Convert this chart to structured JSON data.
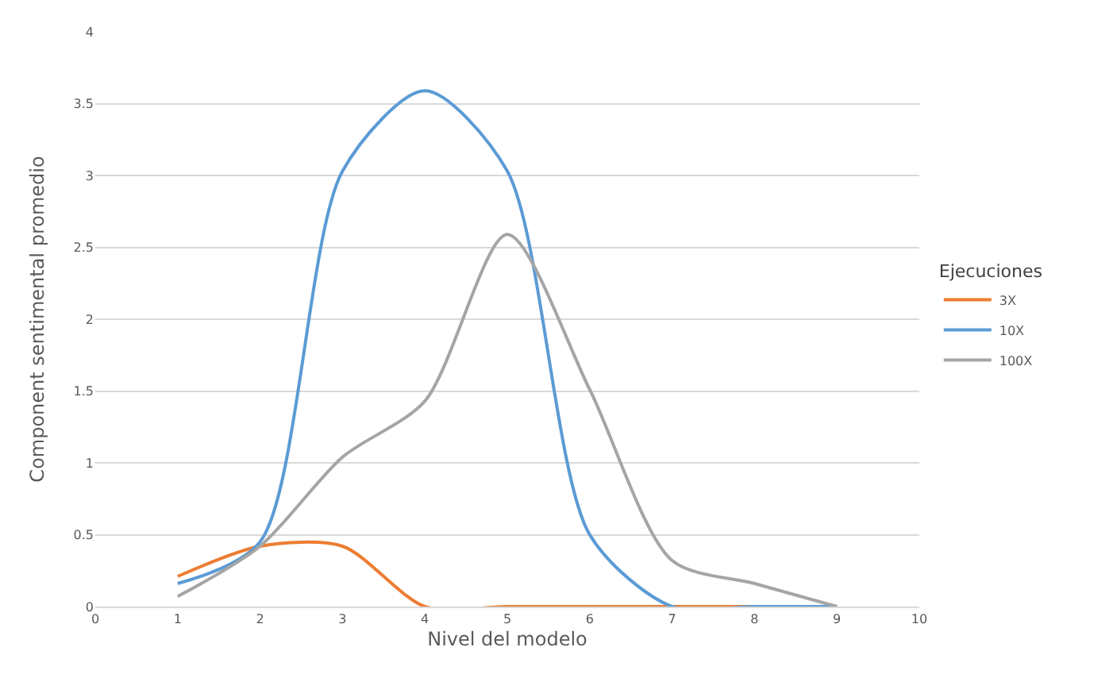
{
  "chart_data": {
    "type": "line",
    "xlabel": "Nivel del modelo",
    "ylabel": "Component sentimental promedio",
    "legend_title": "Ejecuciones",
    "x": [
      1,
      2,
      3,
      4,
      5,
      6,
      7,
      8,
      9
    ],
    "series": [
      {
        "name": "3X",
        "color": "#ed7d31",
        "values": [
          0.21,
          0.42,
          0.42,
          0,
          0,
          0,
          0,
          0,
          0
        ]
      },
      {
        "name": "10X",
        "color": "#5b9bd5",
        "values": [
          0.16,
          0.45,
          3.03,
          3.59,
          3.03,
          0.5,
          0,
          0,
          0
        ]
      },
      {
        "name": "100X",
        "color": "#a5a5a5",
        "values": [
          0.07,
          0.42,
          1.04,
          1.43,
          2.59,
          1.51,
          0.32,
          0.16,
          0
        ]
      }
    ],
    "xlim": [
      0,
      10
    ],
    "xticks": [
      0,
      1,
      2,
      3,
      4,
      5,
      6,
      7,
      8,
      9,
      10
    ],
    "ylim": [
      0,
      4
    ],
    "yticks": [
      0,
      0.5,
      1,
      1.5,
      2,
      2.5,
      3,
      3.5,
      4
    ],
    "grid": "y",
    "legend": "right",
    "marker": "none",
    "line_style": "solid"
  }
}
